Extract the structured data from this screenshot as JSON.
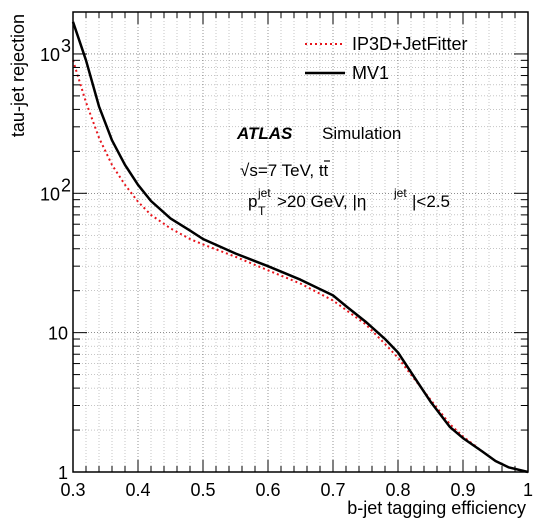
{
  "chart_data": {
    "type": "line",
    "xlabel": "b-jet tagging efficiency",
    "ylabel": "tau-jet rejection",
    "xlim": [
      0.3,
      1.0
    ],
    "ylim": [
      1,
      2000
    ],
    "yscale": "log",
    "grid": true,
    "legend_position": "top-right",
    "x_ticks": [
      "0.3",
      "0.4",
      "0.5",
      "0.6",
      "0.7",
      "0.8",
      "0.9",
      "1"
    ],
    "y_ticks": [
      {
        "value": 1,
        "base": "1",
        "exp": ""
      },
      {
        "value": 10,
        "base": "10",
        "exp": ""
      },
      {
        "value": 100,
        "base": "10",
        "exp": "2"
      },
      {
        "value": 1000,
        "base": "10",
        "exp": "3"
      }
    ],
    "annotations": {
      "atlas": "ATLAS",
      "simulation": "Simulation",
      "sqrt_s": "√s",
      "energy": "=7 TeV, t",
      "tbar": "t",
      "pt_p": "p",
      "pt_sup": "jet",
      "pt_sub": "T",
      "pt_cut": ">20 GeV, |η",
      "eta_sup": "jet",
      "eta_cut": "|<2.5"
    },
    "series": [
      {
        "name": "IP3D+JetFitter",
        "color": "#e8141c",
        "dash": "dotted",
        "x": [
          0.3,
          0.32,
          0.34,
          0.36,
          0.38,
          0.4,
          0.42,
          0.45,
          0.48,
          0.5,
          0.55,
          0.6,
          0.65,
          0.7,
          0.75,
          0.78,
          0.8,
          0.82,
          0.85,
          0.88,
          0.9,
          0.93,
          0.95,
          0.97,
          1.0
        ],
        "y": [
          900,
          450,
          250,
          160,
          115,
          87,
          70,
          56,
          47,
          43,
          35,
          28,
          22.5,
          17,
          11.5,
          8.3,
          6.6,
          5.0,
          3.3,
          2.2,
          1.8,
          1.4,
          1.2,
          1.08,
          1.0
        ]
      },
      {
        "name": "MV1",
        "color": "#000000",
        "dash": "solid",
        "x": [
          0.3,
          0.32,
          0.34,
          0.36,
          0.38,
          0.4,
          0.42,
          0.45,
          0.48,
          0.5,
          0.55,
          0.6,
          0.65,
          0.7,
          0.72,
          0.75,
          0.78,
          0.8,
          0.82,
          0.85,
          0.88,
          0.9,
          0.93,
          0.95,
          0.97,
          1.0
        ],
        "y": [
          1700,
          900,
          420,
          240,
          160,
          115,
          88,
          66,
          54,
          47,
          37,
          30,
          24,
          18.5,
          15.5,
          12,
          9,
          7.2,
          5.2,
          3.2,
          2.1,
          1.75,
          1.4,
          1.2,
          1.08,
          1.0
        ]
      }
    ]
  }
}
